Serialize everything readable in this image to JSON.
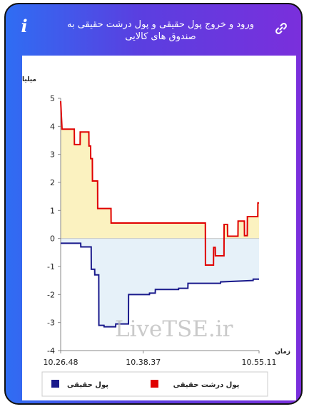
{
  "header": {
    "title": "ورود و خروج پول حقیقی و پول درشت حقیقی به صندوق های کالایی",
    "info_icon": "i",
    "link_icon": "link-icon"
  },
  "watermark": "LiveTSE.ir",
  "colors": {
    "real_money": "#1a1a8c",
    "big_real_money": "#e00000",
    "positive_fill": "#fbf2c0",
    "negative_fill": "#e6f1f9"
  },
  "chart_data": {
    "type": "line",
    "ylabel": "میلیارد تومان",
    "xlabel": "زمان",
    "ylim": [
      -4,
      5
    ],
    "yticks": [
      5,
      4,
      3,
      2,
      1,
      0,
      -1,
      -2,
      -3,
      -4
    ],
    "xlim": [
      "10.26.48",
      "10.55.11"
    ],
    "xticks": [
      "10.26.48",
      "10.38.37",
      "10.55.11"
    ],
    "grid": false,
    "legend_position": "bottom",
    "legend": [
      "پول حقیقی",
      "پول درشت حقیقی"
    ],
    "series": [
      {
        "name": "پول درشت حقیقی",
        "color": "#e00000",
        "points": [
          [
            "10.26.48",
            4.9
          ],
          [
            "10.27.00",
            3.9
          ],
          [
            "10.28.45",
            3.9
          ],
          [
            "10.28.46",
            3.35
          ],
          [
            "10.29.35",
            3.35
          ],
          [
            "10.29.36",
            3.8
          ],
          [
            "10.30.50",
            3.8
          ],
          [
            "10.30.51",
            3.3
          ],
          [
            "10.31.05",
            3.3
          ],
          [
            "10.31.06",
            2.85
          ],
          [
            "10.31.20",
            2.85
          ],
          [
            "10.31.21",
            2.05
          ],
          [
            "10.32.05",
            2.05
          ],
          [
            "10.32.06",
            1.07
          ],
          [
            "10.34.00",
            1.07
          ],
          [
            "10.34.01",
            0.55
          ],
          [
            "10.47.30",
            0.55
          ],
          [
            "10.47.31",
            -0.95
          ],
          [
            "10.48.40",
            -0.95
          ],
          [
            "10.48.41",
            -0.32
          ],
          [
            "10.48.55",
            -0.32
          ],
          [
            "10.48.56",
            -0.62
          ],
          [
            "10.50.10",
            -0.62
          ],
          [
            "10.50.11",
            0.5
          ],
          [
            "10.50.40",
            0.5
          ],
          [
            "10.50.41",
            0.08
          ],
          [
            "10.52.10",
            0.08
          ],
          [
            "10.52.11",
            0.62
          ],
          [
            "10.53.05",
            0.62
          ],
          [
            "10.53.06",
            0.1
          ],
          [
            "10.53.30",
            0.1
          ],
          [
            "10.53.31",
            0.78
          ],
          [
            "10.55.00",
            0.78
          ],
          [
            "10.55.01",
            1.27
          ],
          [
            "10.55.11",
            1.27
          ]
        ]
      },
      {
        "name": "پول حقیقی",
        "color": "#1a1a8c",
        "points": [
          [
            "10.26.48",
            -0.17
          ],
          [
            "10.29.40",
            -0.17
          ],
          [
            "10.29.41",
            -0.3
          ],
          [
            "10.31.10",
            -0.3
          ],
          [
            "10.31.11",
            -1.1
          ],
          [
            "10.31.40",
            -1.1
          ],
          [
            "10.31.41",
            -1.3
          ],
          [
            "10.32.15",
            -1.3
          ],
          [
            "10.32.16",
            -3.1
          ],
          [
            "10.33.00",
            -3.1
          ],
          [
            "10.33.01",
            -3.15
          ],
          [
            "10.34.40",
            -3.15
          ],
          [
            "10.34.41",
            -3.05
          ],
          [
            "10.36.30",
            -3.05
          ],
          [
            "10.36.31",
            -2.0
          ],
          [
            "10.39.30",
            -2.0
          ],
          [
            "10.39.31",
            -1.95
          ],
          [
            "10.40.20",
            -1.95
          ],
          [
            "10.40.21",
            -1.82
          ],
          [
            "10.43.40",
            -1.82
          ],
          [
            "10.43.41",
            -1.78
          ],
          [
            "10.45.00",
            -1.78
          ],
          [
            "10.45.01",
            -1.6
          ],
          [
            "10.49.40",
            -1.6
          ],
          [
            "10.49.41",
            -1.55
          ],
          [
            "10.54.20",
            -1.5
          ],
          [
            "10.54.21",
            -1.45
          ],
          [
            "10.55.11",
            -1.45
          ]
        ]
      }
    ]
  }
}
